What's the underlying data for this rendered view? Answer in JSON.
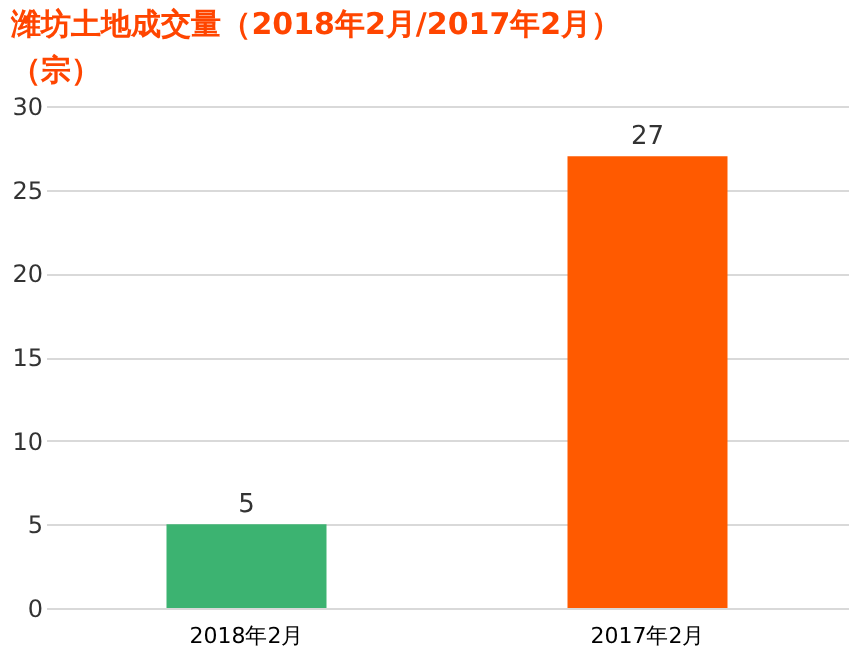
{
  "chart_data": {
    "type": "bar",
    "title": "潍坊土地成交量（2018年2月/2017年2月）",
    "subtitle": "（宗）",
    "categories": [
      "2018年2月",
      "2017年2月"
    ],
    "values": [
      5,
      27
    ],
    "colors": [
      "#3cb371",
      "#ff5a00"
    ],
    "ylim": [
      0,
      30
    ],
    "yticks": [
      0,
      5,
      10,
      15,
      20,
      25,
      30
    ],
    "grid": "y",
    "data_labels": true
  }
}
